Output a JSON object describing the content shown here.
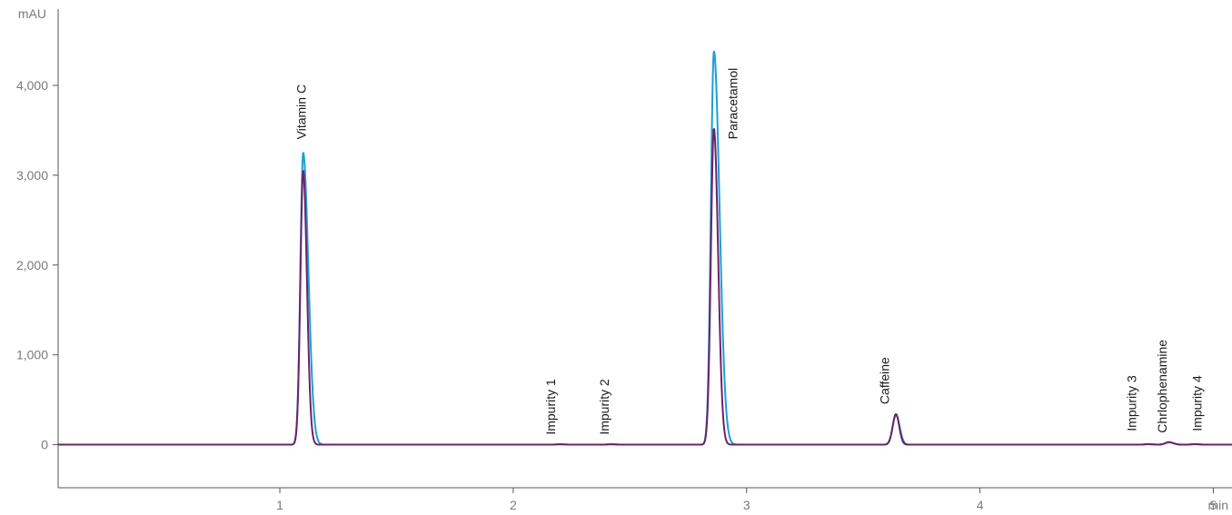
{
  "chart_data": {
    "type": "line",
    "title": "",
    "xlabel": "",
    "ylabel": "",
    "x_unit": "min",
    "y_unit": "mAU",
    "xlim": [
      0.05,
      5.08
    ],
    "ylim": [
      -480,
      4850
    ],
    "x_ticks": [
      1,
      2,
      3,
      4,
      5
    ],
    "x_tick_labels": [
      "1",
      "2",
      "3",
      "4",
      "5"
    ],
    "y_ticks": [
      0,
      1000,
      2000,
      3000,
      4000
    ],
    "y_tick_labels": [
      "0",
      "1,000",
      "2,000",
      "3,000",
      "4,000"
    ],
    "grid": false,
    "legend": "none",
    "series": [
      {
        "color": "#1a9fd9",
        "peaks": [
          {
            "rt": 1.1,
            "height": 3250,
            "sigma": 0.012,
            "tail": 0.022
          },
          {
            "rt": 2.2,
            "height": 4,
            "sigma": 0.015,
            "tail": 0.02
          },
          {
            "rt": 2.42,
            "height": 4,
            "sigma": 0.015,
            "tail": 0.02
          },
          {
            "rt": 2.86,
            "height": 4380,
            "sigma": 0.013,
            "tail": 0.024
          },
          {
            "rt": 3.64,
            "height": 330,
            "sigma": 0.014,
            "tail": 0.016
          },
          {
            "rt": 4.72,
            "height": 5,
            "sigma": 0.015,
            "tail": 0.02
          },
          {
            "rt": 4.81,
            "height": 25,
            "sigma": 0.016,
            "tail": 0.02
          },
          {
            "rt": 4.92,
            "height": 5,
            "sigma": 0.015,
            "tail": 0.02
          }
        ]
      },
      {
        "color": "#6b2368",
        "peaks": [
          {
            "rt": 1.1,
            "height": 3050,
            "sigma": 0.012,
            "tail": 0.016
          },
          {
            "rt": 2.2,
            "height": 4,
            "sigma": 0.015,
            "tail": 0.02
          },
          {
            "rt": 2.42,
            "height": 4,
            "sigma": 0.015,
            "tail": 0.02
          },
          {
            "rt": 2.86,
            "height": 3520,
            "sigma": 0.013,
            "tail": 0.018
          },
          {
            "rt": 3.64,
            "height": 340,
            "sigma": 0.014,
            "tail": 0.014
          },
          {
            "rt": 4.72,
            "height": 5,
            "sigma": 0.015,
            "tail": 0.02
          },
          {
            "rt": 4.81,
            "height": 28,
            "sigma": 0.016,
            "tail": 0.018
          },
          {
            "rt": 4.92,
            "height": 5,
            "sigma": 0.015,
            "tail": 0.02
          }
        ]
      }
    ],
    "annotations": [
      {
        "text": "Vitamin C",
        "x": 1.11,
        "y": 3400
      },
      {
        "text": "Impurity 1",
        "x": 2.18,
        "y": 110
      },
      {
        "text": "Impurity 2",
        "x": 2.41,
        "y": 110
      },
      {
        "text": "Paracetamol",
        "x": 2.96,
        "y": 3400
      },
      {
        "text": "Caffeine",
        "x": 3.61,
        "y": 450
      },
      {
        "text": "Impurity 3",
        "x": 4.67,
        "y": 150
      },
      {
        "text": "Chrlophenamine",
        "x": 4.8,
        "y": 130
      },
      {
        "text": "Impurity 4",
        "x": 4.95,
        "y": 150
      }
    ]
  }
}
